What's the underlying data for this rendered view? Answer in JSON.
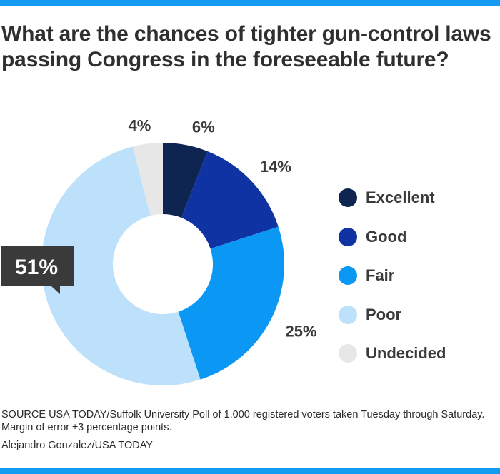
{
  "colors": {
    "accent_bar": "#129bf0",
    "callout_bg": "#3a3a3a"
  },
  "chart_data": {
    "type": "pie",
    "style": "donut",
    "title": "What are the chances of tighter gun-control laws passing Congress in the foreseeable future?",
    "categories": [
      "Excellent",
      "Good",
      "Fair",
      "Poor",
      "Undecided"
    ],
    "values": [
      6,
      14,
      25,
      51,
      4
    ],
    "value_labels": [
      "6%",
      "14%",
      "25%",
      "51%",
      "4%"
    ],
    "colors": [
      "#0d2550",
      "#0f33a3",
      "#0b97f4",
      "#bde1fb",
      "#e7e7e7"
    ],
    "legend_position": "right",
    "highlight": {
      "category": "Poor",
      "label": "51%"
    },
    "source": "SOURCE USA TODAY/Suffolk University Poll of 1,000 registered voters taken Tuesday through Saturday. Margin of error ±3 percentage points.",
    "credit": "Alejandro Gonzalez/USA TODAY"
  }
}
